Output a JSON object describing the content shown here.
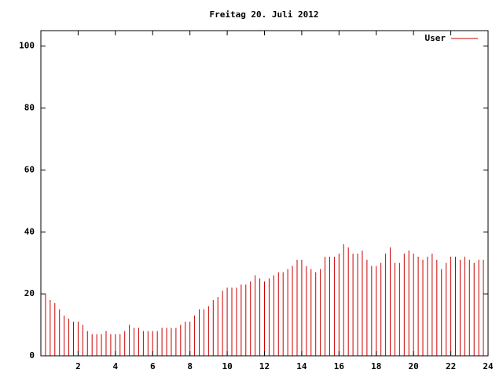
{
  "chart_data": {
    "type": "impulse",
    "title": "Freitag 20. Juli 2012",
    "series": [
      {
        "name": "User",
        "color": "#cc0000",
        "x": [
          0,
          0.25,
          0.5,
          0.75,
          1,
          1.25,
          1.5,
          1.75,
          2,
          2.25,
          2.5,
          2.75,
          3,
          3.25,
          3.5,
          3.75,
          4,
          4.25,
          4.5,
          4.75,
          5,
          5.25,
          5.5,
          5.75,
          6,
          6.25,
          6.5,
          6.75,
          7,
          7.25,
          7.5,
          7.75,
          8,
          8.25,
          8.5,
          8.75,
          9,
          9.25,
          9.5,
          9.75,
          10,
          10.25,
          10.5,
          10.75,
          11,
          11.25,
          11.5,
          11.75,
          12,
          12.25,
          12.5,
          12.75,
          13,
          13.25,
          13.5,
          13.75,
          14,
          14.25,
          14.5,
          14.75,
          15,
          15.25,
          15.5,
          15.75,
          16,
          16.25,
          16.5,
          16.75,
          17,
          17.25,
          17.5,
          17.75,
          18,
          18.25,
          18.5,
          18.75,
          19,
          19.25,
          19.5,
          19.75,
          20,
          20.25,
          20.5,
          20.75,
          21,
          21.25,
          21.5,
          21.75,
          22,
          22.25,
          22.5,
          22.75,
          23,
          23.25,
          23.5,
          23.75
        ],
        "values": [
          21,
          20,
          18,
          17,
          15,
          13,
          12,
          11,
          11,
          10,
          8,
          7,
          7,
          7,
          8,
          7,
          7,
          7,
          8,
          10,
          9,
          9,
          8,
          8,
          8,
          8,
          9,
          9,
          9,
          9,
          10,
          11,
          11,
          13,
          15,
          15,
          16,
          18,
          19,
          21,
          22,
          22,
          22,
          23,
          23,
          24,
          26,
          25,
          24,
          25,
          26,
          27,
          27,
          28,
          29,
          31,
          31,
          29,
          28,
          27,
          28,
          32,
          32,
          32,
          33,
          36,
          35,
          33,
          33,
          34,
          31,
          29,
          29,
          30,
          33,
          35,
          30,
          30,
          33,
          34,
          33,
          32,
          31,
          32,
          33,
          31,
          28,
          30,
          32,
          32,
          31,
          32,
          31,
          30,
          31,
          31
        ]
      }
    ],
    "xlim": [
      0,
      24
    ],
    "xticks": [
      2,
      4,
      6,
      8,
      10,
      12,
      14,
      16,
      18,
      20,
      22,
      24
    ],
    "ylim": [
      0,
      105
    ],
    "yticks": [
      0,
      20,
      40,
      60,
      80,
      100
    ],
    "legend": "upper right"
  }
}
